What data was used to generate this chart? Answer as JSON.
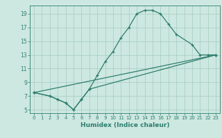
{
  "title": "",
  "xlabel": "Humidex (Indice chaleur)",
  "xlim": [
    -0.5,
    23.5
  ],
  "ylim": [
    4.5,
    20.2
  ],
  "yticks": [
    5,
    7,
    9,
    11,
    13,
    15,
    17,
    19
  ],
  "xticks": [
    0,
    1,
    2,
    3,
    4,
    5,
    6,
    7,
    8,
    9,
    10,
    11,
    12,
    13,
    14,
    15,
    16,
    17,
    18,
    19,
    20,
    21,
    22,
    23
  ],
  "bg_color": "#cde8e0",
  "line_color": "#2d7d6e",
  "grid_color": "#aacfc5",
  "line1_x": [
    0,
    2,
    3,
    4,
    5,
    6,
    7,
    8,
    9,
    10,
    11,
    12,
    13,
    14,
    15,
    16,
    17,
    18,
    20,
    21,
    22,
    23
  ],
  "line1_y": [
    7.5,
    7.0,
    6.5,
    6.0,
    5.0,
    6.5,
    8.0,
    10.0,
    12.0,
    13.5,
    15.5,
    17.0,
    19.0,
    19.5,
    19.5,
    19.0,
    17.5,
    16.0,
    14.5,
    13.0,
    13.0,
    13.0
  ],
  "line2_x": [
    0,
    2,
    3,
    4,
    5,
    6,
    7,
    23
  ],
  "line2_y": [
    7.5,
    7.0,
    6.5,
    6.0,
    5.0,
    6.5,
    8.0,
    13.0
  ],
  "line3_x": [
    0,
    23
  ],
  "line3_y": [
    7.5,
    13.0
  ]
}
